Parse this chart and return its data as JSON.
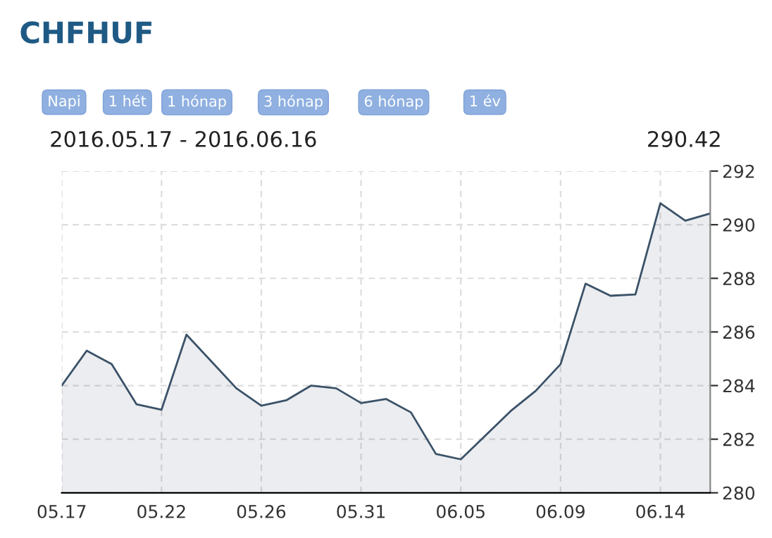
{
  "chart_data": {
    "type": "area",
    "title": "CHFHUF",
    "subtitle": "2016.05.17 - 2016.06.16",
    "annotations": [
      "Napi",
      "1 hét",
      "1 hónap",
      "3 hónap",
      "6 hónap",
      "1 év",
      "290.42"
    ],
    "categories": [
      "05.17",
      null,
      null,
      null,
      "05.22",
      null,
      null,
      null,
      "05.26",
      null,
      null,
      null,
      "05.31",
      null,
      null,
      null,
      "06.05",
      null,
      null,
      null,
      "06.09",
      null,
      null,
      null,
      "06.14",
      null,
      null
    ],
    "series": [
      {
        "color": "#3b5268",
        "values": [
          284.0,
          285.3,
          284.8,
          283.3,
          283.1,
          285.9,
          284.9,
          283.9,
          283.25,
          283.45,
          284.0,
          283.9,
          283.35,
          283.5,
          283.0,
          281.45,
          281.25,
          282.15,
          283.05,
          283.8,
          284.8,
          287.8,
          287.35,
          287.4,
          290.8,
          290.15,
          290.42
        ]
      }
    ],
    "ylim": [
      280,
      292
    ],
    "yticks": [
      280,
      282,
      284,
      286,
      288,
      290,
      292
    ],
    "grid": true,
    "legend": false
  }
}
